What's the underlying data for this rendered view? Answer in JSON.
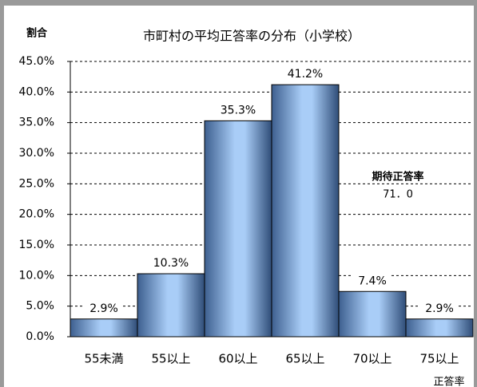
{
  "chart_data": {
    "type": "bar",
    "title": "市町村の平均正答率の分布（小学校）",
    "y_label": "割合",
    "x_label": "正答率",
    "categories": [
      "55未満",
      "55以上",
      "60以上",
      "65以上",
      "70以上",
      "75以上"
    ],
    "values": [
      2.9,
      10.3,
      35.3,
      41.2,
      7.4,
      2.9
    ],
    "value_labels": [
      "2.9%",
      "10.3%",
      "35.3%",
      "41.2%",
      "7.4%",
      "2.9%"
    ],
    "color": "#a9cdf7",
    "ylim": [
      0,
      45
    ],
    "yticks": [
      {
        "value": 0,
        "label": "0.0%"
      },
      {
        "value": 5,
        "label": "5.0%"
      },
      {
        "value": 10,
        "label": "10.0%"
      },
      {
        "value": 15,
        "label": "15.0%"
      },
      {
        "value": 20,
        "label": "20.0%"
      },
      {
        "value": 25,
        "label": "25.0%"
      },
      {
        "value": 30,
        "label": "30.0%"
      },
      {
        "value": 35,
        "label": "35.0%"
      },
      {
        "value": 40,
        "label": "40.0%"
      },
      {
        "value": 45,
        "label": "45.0%"
      }
    ],
    "grid": true,
    "annotations": [
      "期待正答率",
      "71．0"
    ]
  }
}
